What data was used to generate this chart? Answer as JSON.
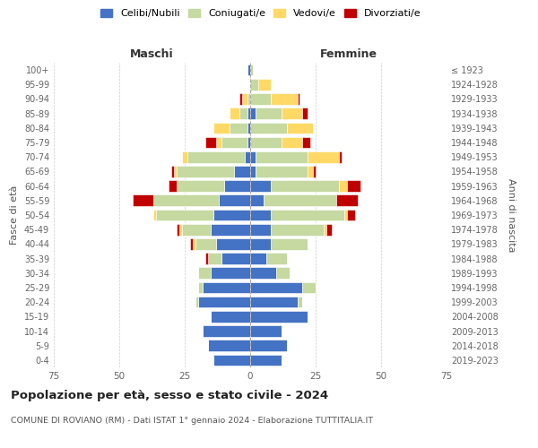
{
  "age_groups": [
    "0-4",
    "5-9",
    "10-14",
    "15-19",
    "20-24",
    "25-29",
    "30-34",
    "35-39",
    "40-44",
    "45-49",
    "50-54",
    "55-59",
    "60-64",
    "65-69",
    "70-74",
    "75-79",
    "80-84",
    "85-89",
    "90-94",
    "95-99",
    "100+"
  ],
  "birth_years": [
    "2019-2023",
    "2014-2018",
    "2009-2013",
    "2004-2008",
    "1999-2003",
    "1994-1998",
    "1989-1993",
    "1984-1988",
    "1979-1983",
    "1974-1978",
    "1969-1973",
    "1964-1968",
    "1959-1963",
    "1954-1958",
    "1949-1953",
    "1944-1948",
    "1939-1943",
    "1934-1938",
    "1929-1933",
    "1924-1928",
    "≤ 1923"
  ],
  "maschi": {
    "celibi": [
      14,
      16,
      18,
      15,
      20,
      18,
      15,
      11,
      13,
      15,
      14,
      12,
      10,
      6,
      2,
      1,
      1,
      1,
      0,
      0,
      1
    ],
    "coniugati": [
      0,
      0,
      0,
      0,
      1,
      2,
      5,
      5,
      8,
      11,
      22,
      25,
      18,
      22,
      22,
      10,
      7,
      3,
      1,
      0,
      0
    ],
    "vedovi": [
      0,
      0,
      0,
      0,
      0,
      0,
      0,
      0,
      1,
      1,
      1,
      0,
      0,
      1,
      2,
      2,
      6,
      4,
      2,
      0,
      0
    ],
    "divorziati": [
      0,
      0,
      0,
      0,
      0,
      0,
      0,
      1,
      1,
      1,
      0,
      8,
      3,
      1,
      0,
      4,
      0,
      0,
      1,
      0,
      0
    ]
  },
  "femmine": {
    "nubili": [
      12,
      14,
      12,
      22,
      18,
      20,
      10,
      6,
      8,
      8,
      8,
      5,
      8,
      2,
      2,
      0,
      0,
      2,
      0,
      0,
      0
    ],
    "coniugate": [
      0,
      0,
      0,
      0,
      2,
      5,
      5,
      8,
      14,
      20,
      28,
      28,
      26,
      20,
      20,
      12,
      14,
      10,
      8,
      3,
      1
    ],
    "vedove": [
      0,
      0,
      0,
      0,
      0,
      0,
      0,
      0,
      0,
      1,
      1,
      0,
      3,
      2,
      12,
      8,
      10,
      8,
      10,
      5,
      0
    ],
    "divorziate": [
      0,
      0,
      0,
      0,
      0,
      0,
      0,
      0,
      0,
      2,
      3,
      8,
      5,
      1,
      1,
      3,
      0,
      2,
      1,
      0,
      0
    ]
  },
  "colors": {
    "celibi": "#4472C4",
    "coniugati": "#c5d9a0",
    "vedovi": "#FFD966",
    "divorziati": "#C00000"
  },
  "title": "Popolazione per età, sesso e stato civile - 2024",
  "subtitle": "COMUNE DI ROVIANO (RM) - Dati ISTAT 1° gennaio 2024 - Elaborazione TUTTITALIA.IT",
  "xlabel_left": "Maschi",
  "xlabel_right": "Femmine",
  "ylabel_left": "Fasce di età",
  "ylabel_right": "Anni di nascita",
  "xlim": 75,
  "legend_labels": [
    "Celibi/Nubili",
    "Coniugati/e",
    "Vedovi/e",
    "Divorziati/e"
  ],
  "background_color": "#ffffff",
  "grid_color": "#cccccc",
  "tick_color": "#666666"
}
